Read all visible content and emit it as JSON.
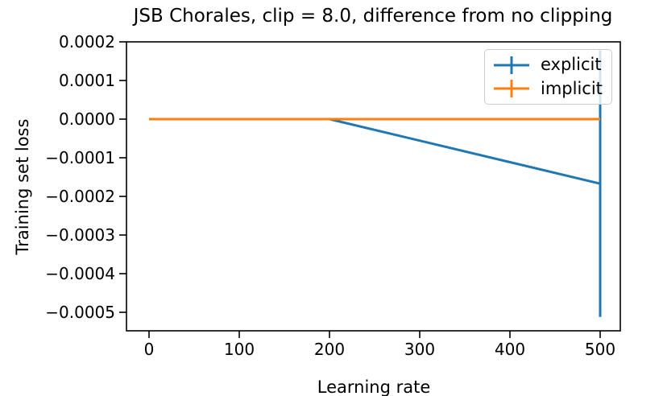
{
  "chart_data": {
    "type": "line",
    "title": "JSB Chorales, clip = 8.0, difference from no clipping",
    "xlabel": "Learning rate",
    "ylabel": "Training set loss",
    "xlim": [
      -25,
      522
    ],
    "ylim": [
      -0.000548,
      0.0002
    ],
    "x_ticks": [
      0,
      100,
      200,
      300,
      400,
      500
    ],
    "y_ticks": [
      0.0002,
      0.0001,
      0.0,
      -0.0001,
      -0.0002,
      -0.0003,
      -0.0004,
      -0.0005
    ],
    "grid": false,
    "legend_position": "upper right",
    "series": [
      {
        "name": "explicit",
        "color": "#1f77b4",
        "points": [
          [
            0,
            0.0
          ],
          [
            200,
            0.0
          ],
          [
            500,
            -0.000167
          ]
        ],
        "error_bars": [
          {
            "x": 500,
            "y": -0.000167,
            "yerr": 0.000345
          }
        ]
      },
      {
        "name": "implicit",
        "color": "#ff7f0e",
        "points": [
          [
            0,
            0.0
          ],
          [
            500,
            0.0
          ]
        ],
        "error_bars": []
      }
    ]
  },
  "colors": {
    "axis": "#000000",
    "legend_border": "#cccccc",
    "background": "#ffffff"
  }
}
